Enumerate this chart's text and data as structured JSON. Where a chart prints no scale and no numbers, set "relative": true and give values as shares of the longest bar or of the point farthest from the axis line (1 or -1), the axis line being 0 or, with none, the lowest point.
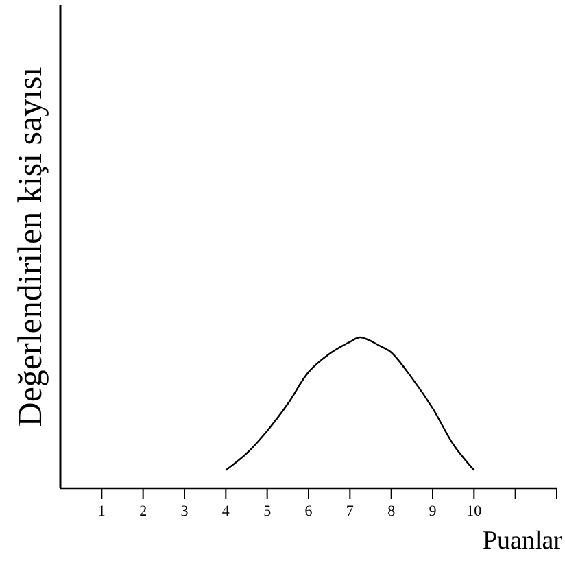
{
  "chart_data": {
    "type": "line",
    "xlabel": "Puanlar",
    "ylabel": "Değerlendirilen kişi sayısı",
    "relative": true,
    "x": [
      4,
      4.5,
      5,
      5.5,
      6,
      6.5,
      7,
      7.25,
      7.75,
      8,
      8.5,
      9,
      9.5,
      10
    ],
    "values": [
      0.12,
      0.23,
      0.38,
      0.56,
      0.77,
      0.89,
      0.97,
      1,
      0.94,
      0.9,
      0.73,
      0.53,
      0.29,
      0.12
    ],
    "color": "#000000",
    "xlim": [
      0,
      12
    ],
    "xticks": [
      1,
      2,
      3,
      4,
      5,
      6,
      7,
      8,
      9,
      10,
      {
        "value": 11,
        "label": null
      },
      {
        "value": 12,
        "label": null
      }
    ],
    "marker": "none",
    "line_style": "solid"
  }
}
